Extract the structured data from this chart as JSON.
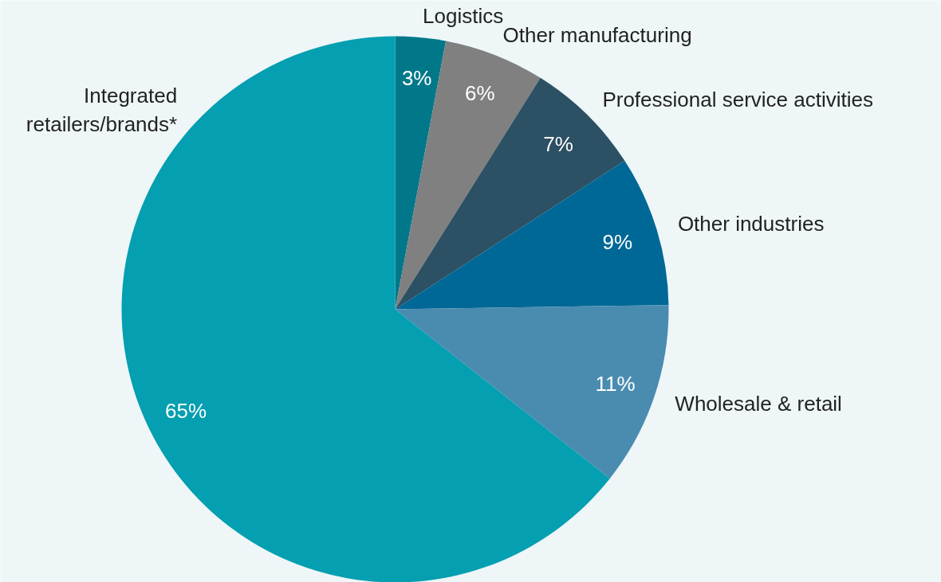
{
  "chart_data": {
    "type": "pie",
    "categories": [
      "Logistics",
      "Other manufacturing",
      "Professional service activities",
      "Other industries",
      "Wholesale & retail",
      "Integrated\nretailers/brands*"
    ],
    "values": [
      3,
      6,
      7,
      9,
      11,
      65
    ],
    "value_labels": [
      "3%",
      "6%",
      "7%",
      "9%",
      "11%",
      "65%"
    ],
    "colors": [
      "#00788a",
      "#808080",
      "#2c5064",
      "#006896",
      "#4a8cb0",
      "#049fb0"
    ]
  }
}
